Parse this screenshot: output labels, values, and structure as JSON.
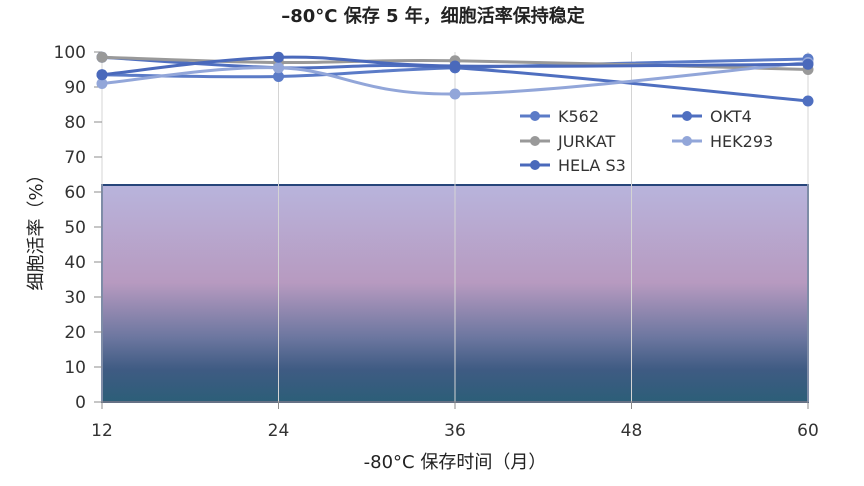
{
  "chart_data": {
    "type": "line",
    "title": "–80°C 保存 5 年，细胞活率保持稳定",
    "xlabel": "-80°C 保存时间（月）",
    "ylabel": "细胞活率（%）",
    "x": [
      12,
      24,
      36,
      48,
      60
    ],
    "xticks": [
      "12",
      "24",
      "36",
      "48",
      "60"
    ],
    "ylim": [
      0,
      100
    ],
    "yticks": [
      "0",
      "10",
      "20",
      "30",
      "40",
      "50",
      "60",
      "70",
      "80",
      "90",
      "100"
    ],
    "grid": "vertical",
    "legend_position": "top-right",
    "series": [
      {
        "name": "K562",
        "color": "#5b7bc7",
        "values": [
          93.5,
          93.0,
          95.5,
          null,
          98.0
        ]
      },
      {
        "name": "OKT4",
        "color": "#4f6fc0",
        "values": [
          98.5,
          95.5,
          95.5,
          null,
          86.0
        ]
      },
      {
        "name": "JURKAT",
        "color": "#999999",
        "values": [
          98.5,
          97.0,
          97.5,
          null,
          95.0
        ]
      },
      {
        "name": "HEK293",
        "color": "#92a6d9",
        "values": [
          91.0,
          95.5,
          88.0,
          null,
          97.0
        ]
      },
      {
        "name": "HELA S3",
        "color": "#4a69bb",
        "values": [
          93.5,
          98.5,
          96.0,
          null,
          96.5
        ]
      }
    ],
    "background_band": {
      "from": 0,
      "to": 62
    }
  }
}
